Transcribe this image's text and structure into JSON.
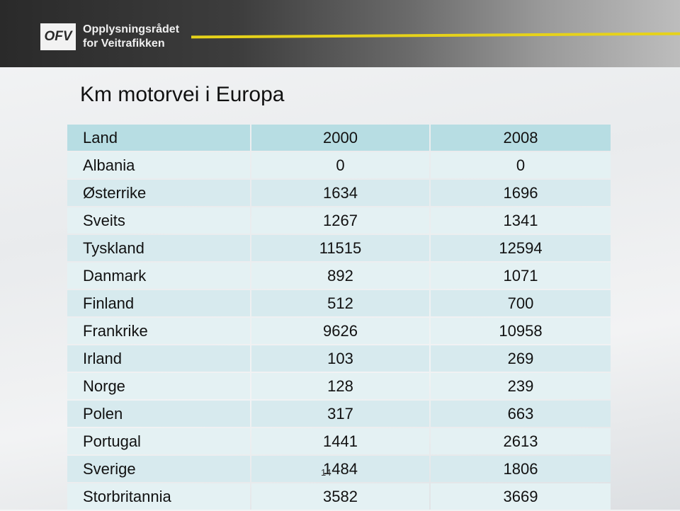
{
  "header": {
    "logo": "OFV",
    "org_line1": "Opplysningsrådet",
    "org_line2": "for Veitrafikken"
  },
  "title": "Km motorvei i Europa",
  "table": {
    "columns": [
      "Land",
      "2000",
      "2008"
    ],
    "rows": [
      [
        "Albania",
        0,
        0
      ],
      [
        "Østerrike",
        1634,
        1696
      ],
      [
        "Sveits",
        1267,
        1341
      ],
      [
        "Tyskland",
        11515,
        12594
      ],
      [
        "Danmark",
        892,
        1071
      ],
      [
        "Finland",
        512,
        700
      ],
      [
        "Frankrike",
        9626,
        10958
      ],
      [
        "Irland",
        103,
        269
      ],
      [
        "Norge",
        128,
        239
      ],
      [
        "Polen",
        317,
        663
      ],
      [
        "Portugal",
        1441,
        2613
      ],
      [
        "Sverige",
        1484,
        1806
      ],
      [
        "Storbritannia",
        3582,
        3669
      ]
    ]
  },
  "page_number": "14"
}
